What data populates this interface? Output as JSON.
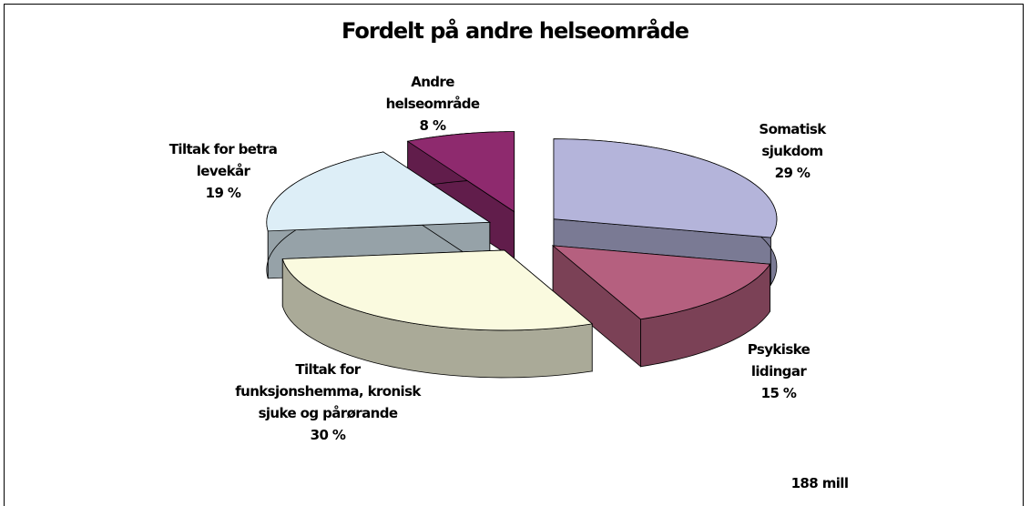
{
  "chart_data": {
    "type": "pie",
    "title": "Fordelt på andre helseområde",
    "categories": [
      "Somatisk sjukdom",
      "Psykiske lidingar",
      "Tiltak for funksjonshemma, kronisk sjuke og pårørande",
      "Tiltak for betra levekår",
      "Andre helseområde"
    ],
    "values": [
      29,
      15,
      30,
      19,
      8
    ],
    "value_labels": [
      "29 %",
      "15 %",
      "30 %",
      "19 %",
      "8 %"
    ],
    "colors": [
      "#b4b4da",
      "#b5607f",
      "#fafadf",
      "#ddeef7",
      "#8e2a6e"
    ],
    "annotation": "188 mill"
  }
}
